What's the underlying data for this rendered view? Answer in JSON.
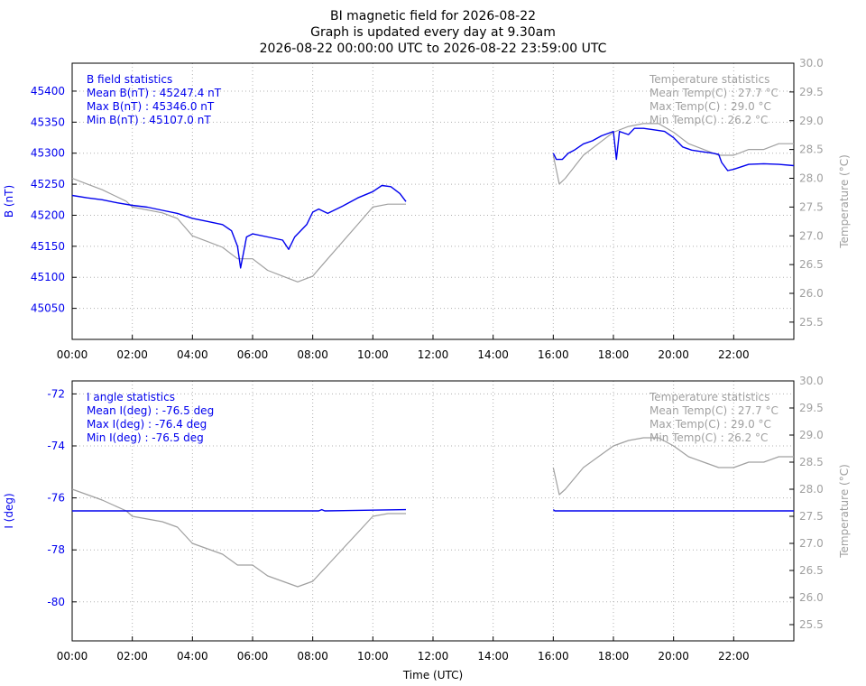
{
  "header": {
    "title": "BI magnetic field for 2026-08-22",
    "subtitle1": "Graph is updated every day at 9.30am",
    "subtitle2": "2026-08-22 00:00:00 UTC to 2026-08-22 23:59:00 UTC"
  },
  "colors": {
    "primary": "#0000ee",
    "temperature": "#a0a0a0",
    "grid": "#b0b0b0",
    "axis": "#000000"
  },
  "x_axis": {
    "label": "Time (UTC)",
    "ticks": [
      "00:00",
      "02:00",
      "04:00",
      "06:00",
      "08:00",
      "10:00",
      "12:00",
      "14:00",
      "16:00",
      "18:00",
      "20:00",
      "22:00"
    ]
  },
  "chart_data": [
    {
      "type": "line",
      "ylabel": "B (nT)",
      "y2label": "Temperature (°C)",
      "xlim": [
        0,
        24
      ],
      "ylim": [
        45000,
        45445
      ],
      "y2lim": [
        25.2,
        30.0
      ],
      "yticks": [
        "45050",
        "45100",
        "45150",
        "45200",
        "45250",
        "45300",
        "45350",
        "45400"
      ],
      "y2ticks": [
        "25.5",
        "26.0",
        "26.5",
        "27.0",
        "27.5",
        "28.0",
        "28.5",
        "29.0",
        "29.5",
        "30.0"
      ],
      "grid": true,
      "stats_left": [
        "B field statistics",
        "Mean B(nT) : 45247.4 nT",
        "Max B(nT) : 45346.0 nT",
        "Min B(nT) : 45107.0 nT"
      ],
      "stats_right": [
        "Temperature statistics",
        "Mean Temp(C) : 27.7 °C",
        "Max Temp(C) : 29.0 °C",
        "Min Temp(C) : 26.2 °C"
      ],
      "series": [
        {
          "axis": "left",
          "color": "#0000ee",
          "segments": [
            [
              [
                0,
                45232
              ],
              [
                0.5,
                45228
              ],
              [
                1,
                45225
              ],
              [
                1.5,
                45220
              ],
              [
                2,
                45216
              ],
              [
                2.5,
                45213
              ],
              [
                3,
                45208
              ],
              [
                3.5,
                45203
              ],
              [
                4,
                45195
              ],
              [
                4.5,
                45190
              ],
              [
                5,
                45185
              ],
              [
                5.3,
                45175
              ],
              [
                5.5,
                45150
              ],
              [
                5.6,
                45115
              ],
              [
                5.8,
                45165
              ],
              [
                6,
                45170
              ],
              [
                6.5,
                45165
              ],
              [
                7,
                45160
              ],
              [
                7.2,
                45145
              ],
              [
                7.4,
                45165
              ],
              [
                7.8,
                45185
              ],
              [
                8,
                45205
              ],
              [
                8.2,
                45210
              ],
              [
                8.5,
                45203
              ],
              [
                9,
                45215
              ],
              [
                9.5,
                45228
              ],
              [
                10,
                45238
              ],
              [
                10.3,
                45248
              ],
              [
                10.6,
                45246
              ],
              [
                10.9,
                45235
              ],
              [
                11.1,
                45222
              ]
            ],
            [
              [
                16,
                45300
              ],
              [
                16.1,
                45290
              ],
              [
                16.3,
                45290
              ],
              [
                16.5,
                45300
              ],
              [
                16.7,
                45305
              ],
              [
                17,
                45315
              ],
              [
                17.3,
                45320
              ],
              [
                17.6,
                45328
              ],
              [
                18,
                45335
              ],
              [
                18.1,
                45290
              ],
              [
                18.2,
                45335
              ],
              [
                18.5,
                45330
              ],
              [
                18.7,
                45340
              ],
              [
                19,
                45340
              ],
              [
                19.3,
                45338
              ],
              [
                19.7,
                45335
              ],
              [
                20,
                45325
              ],
              [
                20.3,
                45310
              ],
              [
                20.6,
                45305
              ],
              [
                21,
                45302
              ],
              [
                21.3,
                45300
              ],
              [
                21.5,
                45298
              ],
              [
                21.6,
                45285
              ],
              [
                21.8,
                45272
              ],
              [
                22,
                45274
              ],
              [
                22.5,
                45282
              ],
              [
                23,
                45283
              ],
              [
                23.5,
                45282
              ],
              [
                24,
                45280
              ]
            ]
          ]
        },
        {
          "axis": "right",
          "color": "#a0a0a0",
          "segments": [
            [
              [
                0,
                28.0
              ],
              [
                0.5,
                27.9
              ],
              [
                1,
                27.8
              ],
              [
                1.8,
                27.6
              ],
              [
                2,
                27.5
              ],
              [
                3,
                27.4
              ],
              [
                3.5,
                27.3
              ],
              [
                4,
                27.0
              ],
              [
                4.5,
                26.9
              ],
              [
                5,
                26.8
              ],
              [
                5.5,
                26.6
              ],
              [
                6,
                26.6
              ],
              [
                6.5,
                26.4
              ],
              [
                7,
                26.3
              ],
              [
                7.5,
                26.2
              ],
              [
                8,
                26.3
              ],
              [
                8.5,
                26.6
              ],
              [
                9,
                26.9
              ],
              [
                9.5,
                27.2
              ],
              [
                10,
                27.5
              ],
              [
                10.5,
                27.55
              ],
              [
                11.1,
                27.55
              ]
            ],
            [
              [
                16,
                28.4
              ],
              [
                16.2,
                27.9
              ],
              [
                16.4,
                28.0
              ],
              [
                16.7,
                28.2
              ],
              [
                17,
                28.4
              ],
              [
                17.5,
                28.6
              ],
              [
                18,
                28.8
              ],
              [
                18.5,
                28.9
              ],
              [
                19,
                28.95
              ],
              [
                19.5,
                28.95
              ],
              [
                20,
                28.8
              ],
              [
                20.5,
                28.6
              ],
              [
                21,
                28.5
              ],
              [
                21.5,
                28.4
              ],
              [
                22,
                28.4
              ],
              [
                22.5,
                28.5
              ],
              [
                23,
                28.5
              ],
              [
                23.5,
                28.6
              ],
              [
                24,
                28.6
              ]
            ]
          ]
        }
      ]
    },
    {
      "type": "line",
      "ylabel": "I (deg)",
      "y2label": "Temperature (°C)",
      "xlim": [
        0,
        24
      ],
      "ylim": [
        -81.5,
        -71.5
      ],
      "y2lim": [
        25.2,
        30.0
      ],
      "yticks": [
        "-72",
        "-74",
        "-76",
        "-78",
        "-80"
      ],
      "y2ticks": [
        "25.5",
        "26.0",
        "26.5",
        "27.0",
        "27.5",
        "28.0",
        "28.5",
        "29.0",
        "29.5",
        "30.0"
      ],
      "grid": true,
      "stats_left": [
        "I angle statistics",
        "Mean I(deg) : -76.5 deg",
        "Max I(deg) : -76.4 deg",
        "Min I(deg) : -76.5 deg"
      ],
      "stats_right": [
        "Temperature statistics",
        "Mean Temp(C) : 27.7 °C",
        "Max Temp(C) : 29.0 °C",
        "Min Temp(C) : 26.2 °C"
      ],
      "series": [
        {
          "axis": "left",
          "color": "#0000ee",
          "segments": [
            [
              [
                0,
                -76.5
              ],
              [
                8.2,
                -76.5
              ],
              [
                8.3,
                -76.45
              ],
              [
                8.4,
                -76.5
              ],
              [
                11.1,
                -76.45
              ]
            ],
            [
              [
                16,
                -76.45
              ],
              [
                16.05,
                -76.5
              ],
              [
                24,
                -76.5
              ]
            ]
          ]
        },
        {
          "axis": "right",
          "color": "#a0a0a0",
          "segments": [
            [
              [
                0,
                28.0
              ],
              [
                0.5,
                27.9
              ],
              [
                1,
                27.8
              ],
              [
                1.8,
                27.6
              ],
              [
                2,
                27.5
              ],
              [
                3,
                27.4
              ],
              [
                3.5,
                27.3
              ],
              [
                4,
                27.0
              ],
              [
                4.5,
                26.9
              ],
              [
                5,
                26.8
              ],
              [
                5.5,
                26.6
              ],
              [
                6,
                26.6
              ],
              [
                6.5,
                26.4
              ],
              [
                7,
                26.3
              ],
              [
                7.5,
                26.2
              ],
              [
                8,
                26.3
              ],
              [
                8.5,
                26.6
              ],
              [
                9,
                26.9
              ],
              [
                9.5,
                27.2
              ],
              [
                10,
                27.5
              ],
              [
                10.5,
                27.55
              ],
              [
                11.1,
                27.55
              ]
            ],
            [
              [
                16,
                28.4
              ],
              [
                16.2,
                27.9
              ],
              [
                16.4,
                28.0
              ],
              [
                16.7,
                28.2
              ],
              [
                17,
                28.4
              ],
              [
                17.5,
                28.6
              ],
              [
                18,
                28.8
              ],
              [
                18.5,
                28.9
              ],
              [
                19,
                28.95
              ],
              [
                19.5,
                28.95
              ],
              [
                20,
                28.8
              ],
              [
                20.5,
                28.6
              ],
              [
                21,
                28.5
              ],
              [
                21.5,
                28.4
              ],
              [
                22,
                28.4
              ],
              [
                22.5,
                28.5
              ],
              [
                23,
                28.5
              ],
              [
                23.5,
                28.6
              ],
              [
                24,
                28.6
              ]
            ]
          ]
        }
      ]
    }
  ]
}
